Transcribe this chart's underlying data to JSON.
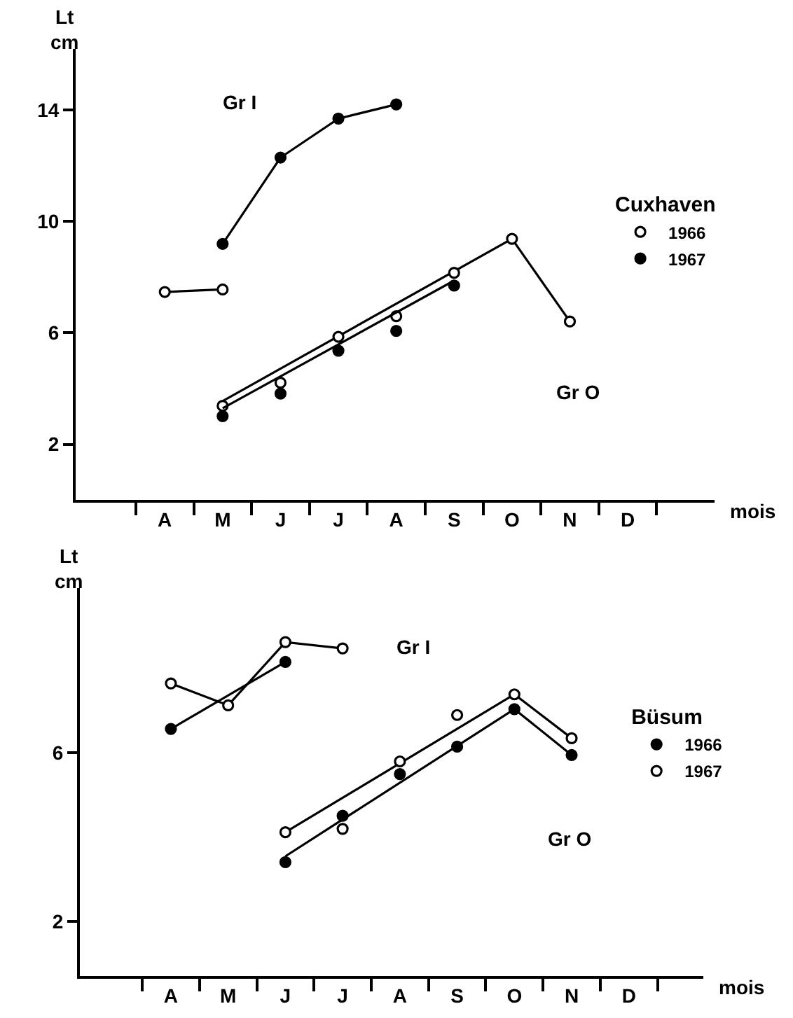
{
  "chart_data": [
    {
      "type": "line",
      "ylabel": "Lt\ncm",
      "xlabel": "mois",
      "legend_title": "Cuxhaven",
      "legend": "right",
      "categories": [
        "A",
        "M",
        "J",
        "J",
        "A",
        "S",
        "O",
        "N",
        "D"
      ],
      "ylim": [
        0,
        16.2
      ],
      "yticks": [
        2,
        6,
        10,
        14
      ],
      "annotations": [
        "Gr I",
        "Gr O"
      ],
      "series": [
        {
          "color": "#000000",
          "marker": "none",
          "values": [
            7.47,
            7.56,
            null,
            null,
            null,
            null,
            null,
            null,
            null
          ]
        },
        {
          "type": "scatter",
          "name": "1966",
          "color": "#ffffff",
          "marker": "circle",
          "values": [
            7.47,
            7.56,
            null,
            null,
            null,
            null,
            null,
            null,
            null
          ]
        },
        {
          "color": "#000000",
          "marker": "none",
          "values": [
            null,
            9.2,
            12.3,
            13.7,
            14.21,
            null,
            null,
            null,
            null
          ]
        },
        {
          "type": "scatter",
          "name": "1967",
          "color": "#000000",
          "marker": "circle",
          "values": [
            null,
            9.2,
            12.3,
            13.7,
            14.21,
            null,
            null,
            null,
            null
          ]
        },
        {
          "color": "#000000",
          "marker": "none",
          "values": [
            null,
            3.55,
            null,
            null,
            null,
            null,
            9.38,
            6.41,
            null
          ]
        },
        {
          "type": "scatter",
          "color": "#ffffff",
          "marker": "circle",
          "values": [
            null,
            3.38,
            4.21,
            5.86,
            6.6,
            8.16,
            9.38,
            6.41,
            null
          ]
        },
        {
          "color": "#000000",
          "marker": "none",
          "values": [
            null,
            3.29,
            null,
            null,
            null,
            7.88,
            null,
            null,
            null
          ]
        },
        {
          "type": "scatter",
          "color": "#000000",
          "marker": "circle",
          "values": [
            null,
            3.01,
            3.82,
            5.36,
            6.07,
            7.7,
            null,
            null,
            null
          ]
        }
      ]
    },
    {
      "type": "line",
      "ylabel": "Lt\ncm",
      "xlabel": "mois",
      "legend_title": "Büsum",
      "legend": "right",
      "categories": [
        "A",
        "M",
        "J",
        "J",
        "A",
        "S",
        "O",
        "N",
        "D"
      ],
      "ylim": [
        0.7,
        9.9
      ],
      "yticks": [
        2,
        6
      ],
      "annotations": [
        "Gr I",
        "Gr O"
      ],
      "series": [
        {
          "color": "#000000",
          "marker": "none",
          "values": [
            6.56,
            null,
            8.15,
            null,
            null,
            null,
            null,
            null,
            null
          ]
        },
        {
          "type": "scatter",
          "name": "1966",
          "color": "#000000",
          "marker": "circle",
          "values": [
            6.56,
            null,
            8.15,
            null,
            null,
            null,
            null,
            null,
            null
          ]
        },
        {
          "color": "#000000",
          "marker": "none",
          "values": [
            7.64,
            7.12,
            8.62,
            8.47,
            null,
            null,
            null,
            null,
            null
          ]
        },
        {
          "type": "scatter",
          "name": "1967",
          "color": "#ffffff",
          "marker": "circle",
          "values": [
            7.64,
            7.12,
            8.62,
            8.47,
            null,
            null,
            null,
            null,
            null
          ]
        },
        {
          "color": "#000000",
          "marker": "none",
          "values": [
            null,
            null,
            3.54,
            null,
            null,
            null,
            7.03,
            5.94,
            null
          ]
        },
        {
          "type": "scatter",
          "color": "#000000",
          "marker": "circle",
          "values": [
            null,
            null,
            3.4,
            4.5,
            5.49,
            6.14,
            7.03,
            5.94,
            null
          ]
        },
        {
          "color": "#000000",
          "marker": "none",
          "values": [
            null,
            null,
            4.11,
            null,
            null,
            null,
            7.38,
            6.34,
            null
          ]
        },
        {
          "type": "scatter",
          "color": "#ffffff",
          "marker": "circle",
          "values": [
            null,
            null,
            4.11,
            4.19,
            5.79,
            6.89,
            7.38,
            6.34,
            null
          ]
        }
      ]
    }
  ]
}
